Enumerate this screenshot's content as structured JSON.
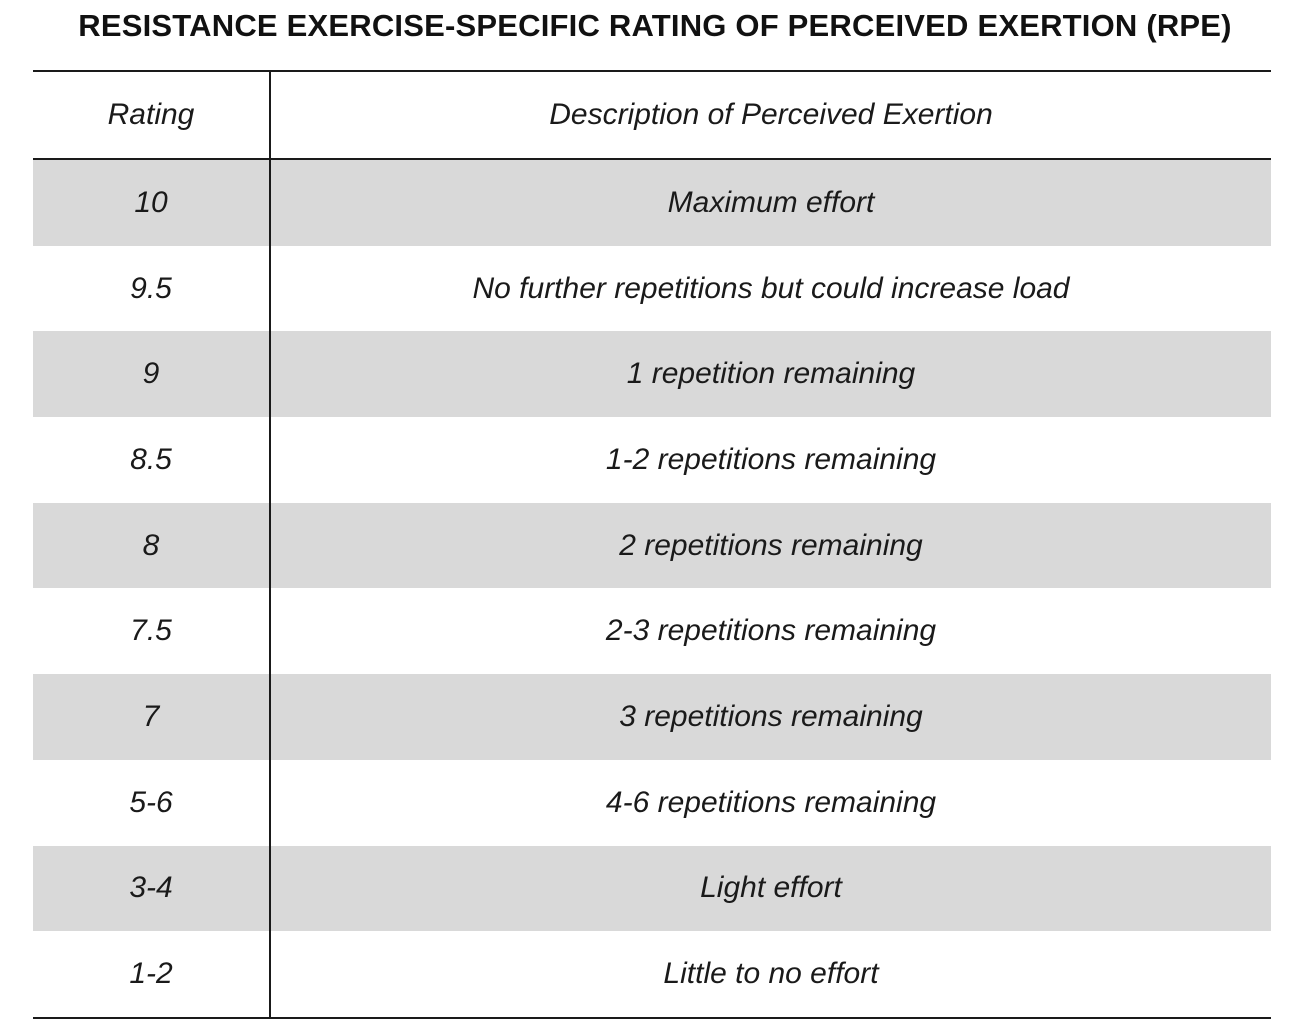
{
  "title": "RESISTANCE EXERCISE-SPECIFIC RATING OF PERCEIVED EXERTION (RPE)",
  "table": {
    "headers": {
      "rating": "Rating",
      "description": "Description of Perceived Exertion"
    },
    "rows": [
      {
        "rating": "10",
        "description": "Maximum effort"
      },
      {
        "rating": "9.5",
        "description": "No further repetitions but could increase load"
      },
      {
        "rating": "9",
        "description": "1 repetition remaining"
      },
      {
        "rating": "8.5",
        "description": "1-2 repetitions remaining"
      },
      {
        "rating": "8",
        "description": "2 repetitions remaining"
      },
      {
        "rating": "7.5",
        "description": "2-3 repetitions remaining"
      },
      {
        "rating": "7",
        "description": "3 repetitions remaining"
      },
      {
        "rating": "5-6",
        "description": "4-6 repetitions remaining"
      },
      {
        "rating": "3-4",
        "description": "Light effort"
      },
      {
        "rating": "1-2",
        "description": "Little to no effort"
      }
    ]
  },
  "colors": {
    "shaded_row": "#d9d9d9",
    "rule": "#1a1a1a"
  }
}
